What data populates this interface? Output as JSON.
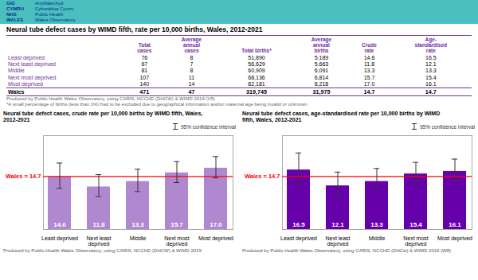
{
  "header": {
    "logo_text": "GIG\nCYMRU\nNHS\nWALES",
    "organisation_text": "Anylifalechyd\nCyhorddua Cymru\nPublic Health\nWales Observatory",
    "color": "#4BBFBF"
  },
  "table": {
    "title": "Neural tube defect cases by WIMD fifth, rate per 10,000 births, Wales, 2012-2021",
    "color": "#7030a0",
    "columns": [
      "Total\ncases",
      "Average\nannual\ncases",
      "Total births*",
      "Average\nannual\nbirths",
      "Crude\nrate",
      "Age-\nstandardised\nrate"
    ],
    "rows": [
      {
        "label": "Least deprived",
        "cells": [
          76,
          8,
          "51,890",
          "5,189",
          "14.6",
          "16.5"
        ]
      },
      {
        "label": "Next least deprived",
        "cells": [
          67,
          7,
          "56,629",
          "5,663",
          "11.8",
          "12.1"
        ]
      },
      {
        "label": "Middle",
        "cells": [
          81,
          8,
          "60,909",
          "6,091",
          "13.3",
          "13.3"
        ]
      },
      {
        "label": "Next most deprived",
        "cells": [
          107,
          11,
          "68,136",
          "6,814",
          "15.7",
          "15.4"
        ]
      },
      {
        "label": "Most deprived",
        "cells": [
          140,
          14,
          "82,181",
          "8,218",
          "17.0",
          "16.1"
        ]
      }
    ],
    "total_row": {
      "label": "Wales",
      "cells": [
        471,
        47,
        "319,745",
        "31,975",
        "14.7",
        "14.7"
      ]
    },
    "source": "Produced by Public Health Wales Observatory, using CARIS, NCCHD (DHCW) & WIMD 2019 (V5)",
    "footnote": "*A small percentage of births (less than 1%) had to be excluded due to geographical information and/or maternal age being invalid or unknown"
  },
  "chart_data": [
    {
      "type": "bar",
      "title": "Neural tube defect cases, crude rate per 10,000 births by WIMD fifth, Wales,\n2012-2021",
      "subtitle": "Produced by Public Health Wales Observatory, using CARIS, NCCHD (DHCW) & WIMD 2019",
      "categories": [
        "Least deprived",
        "Next least\ndeprived",
        "Middle",
        "Next most\ndeprived",
        "Most deprived"
      ],
      "values": [
        14.6,
        11.8,
        13.3,
        15.7,
        17.0
      ],
      "value_labels": [
        "14.6",
        "11.8",
        "13.3",
        "15.7",
        "17.0"
      ],
      "data_labels": true,
      "color": "#B088D0",
      "error_lower": [
        11.4,
        9.1,
        10.5,
        13.0,
        14.3
      ],
      "error_upper": [
        18.4,
        15.2,
        16.7,
        18.8,
        20.2
      ],
      "error_label": "95% confidence interval",
      "reference_line": {
        "value": 14.7,
        "label": "Wales = 14.7",
        "color": "red"
      },
      "ylim": [
        0,
        26
      ],
      "yticks": [],
      "tick_labels": "x",
      "grid": false
    },
    {
      "type": "bar",
      "title": "Neural tube defect cases, age-standardised rate per 10,000 births by WIMD\nfifth, Wales, 2012-2021",
      "subtitle": "Produced by Public Health Wales Observatory, using CARIS, NCCHD (DHCw) & WIMD 2019 (W8)",
      "categories": [
        "Least deprived",
        "Next least\ndeprived",
        "Middle",
        "Next most\ndeprived",
        "Most deprived"
      ],
      "values": [
        16.5,
        12.1,
        13.3,
        15.4,
        16.1
      ],
      "value_labels": [
        "16.5",
        "12.1",
        "13.3",
        "15.4",
        "16.1"
      ],
      "data_labels": true,
      "color": "#6600AA",
      "error_lower": [
        12.8,
        9.2,
        10.4,
        12.7,
        13.3
      ],
      "error_upper": [
        21.2,
        15.9,
        16.9,
        18.6,
        19.5
      ],
      "error_label": "95% confidence interval",
      "reference_line": {
        "value": 14.7,
        "label": "Wales = 14.7",
        "color": "red"
      },
      "ylim": [
        0,
        26
      ],
      "yticks": [],
      "tick_labels": "x",
      "grid": false
    }
  ]
}
